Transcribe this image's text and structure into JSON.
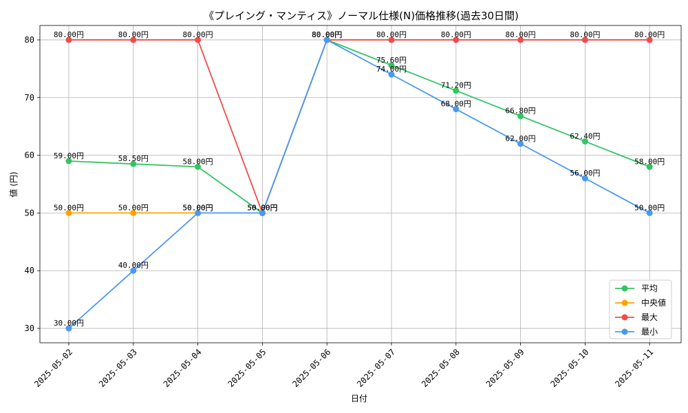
{
  "chart_data": {
    "type": "line",
    "title": "《プレイング・マンティス》ノーマル仕様(N)価格推移(過去30日間)",
    "xlabel": "日付",
    "ylabel": "値 (円)",
    "categories": [
      "2025-05-02",
      "2025-05-03",
      "2025-05-04",
      "2025-05-05",
      "2025-05-06",
      "2025-05-07",
      "2025-05-08",
      "2025-05-09",
      "2025-05-10",
      "2025-05-11"
    ],
    "ylim": [
      27.5,
      82.5
    ],
    "yticks": [
      30,
      40,
      50,
      60,
      70,
      80
    ],
    "grid": true,
    "legend_position": "lower-right",
    "value_suffix": "円",
    "series": [
      {
        "name": "平均",
        "color": "#33c463",
        "values": [
          59.0,
          58.5,
          58.0,
          50.0,
          80.0,
          75.6,
          71.2,
          66.8,
          62.4,
          58.0
        ]
      },
      {
        "name": "中央値",
        "color": "#ffa200",
        "values": [
          50.0,
          50.0,
          50.0,
          null,
          null,
          null,
          null,
          null,
          null,
          null
        ]
      },
      {
        "name": "最大",
        "color": "#f24b4b",
        "values": [
          80.0,
          80.0,
          80.0,
          50.0,
          80.0,
          80.0,
          80.0,
          80.0,
          80.0,
          80.0
        ]
      },
      {
        "name": "最小",
        "color": "#4a98f0",
        "values": [
          30.0,
          40.0,
          50.0,
          50.0,
          80.0,
          74.0,
          68.0,
          62.0,
          56.0,
          50.0
        ]
      }
    ]
  }
}
